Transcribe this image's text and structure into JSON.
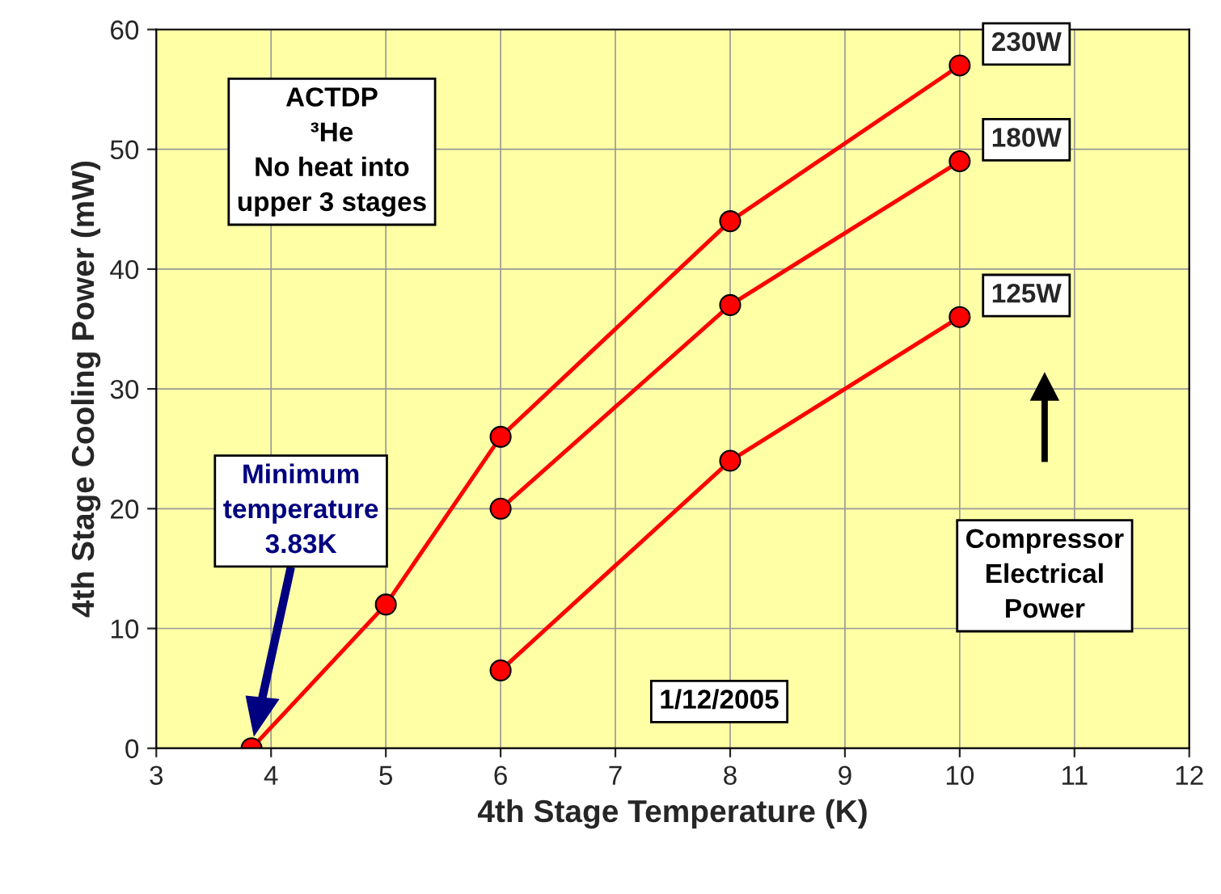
{
  "chart_data": {
    "type": "line",
    "xlabel": "4th Stage Temperature (K)",
    "ylabel": "4th Stage Cooling Power (mW)",
    "xlim": [
      3,
      12
    ],
    "xticks": [
      3,
      4,
      5,
      6,
      7,
      8,
      9,
      10,
      11,
      12
    ],
    "ylim": [
      0,
      60
    ],
    "yticks": [
      0,
      10,
      20,
      30,
      40,
      50,
      60
    ],
    "grid": true,
    "marker": "circle",
    "line_style": "solid",
    "series": [
      {
        "name": "230W",
        "color": "#ff0000",
        "x": [
          3.83,
          5,
          6,
          8,
          10
        ],
        "values": [
          0,
          12,
          26,
          44,
          57
        ]
      },
      {
        "name": "180W",
        "color": "#ff0000",
        "x": [
          6,
          8,
          10
        ],
        "values": [
          20,
          37,
          49
        ]
      },
      {
        "name": "125W",
        "color": "#ff0000",
        "x": [
          6,
          8,
          10
        ],
        "values": [
          6.5,
          24,
          36
        ]
      }
    ],
    "annotations": [
      "ACTDP\n³He\nNo heat into\nupper 3 stages",
      "Minimum\ntemperature\n3.83K",
      "Compressor\nElectrical\nPower",
      "1/12/2005"
    ]
  }
}
